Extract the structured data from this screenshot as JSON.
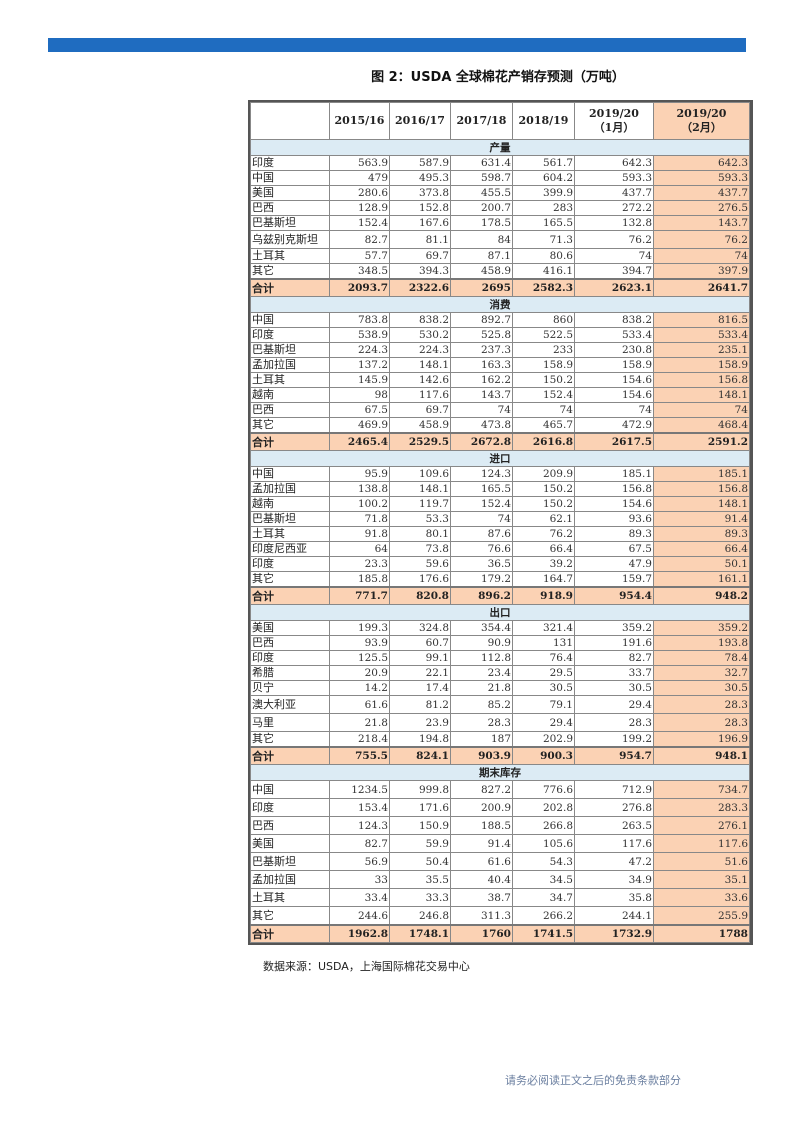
{
  "title": "图 2：USDA 全球棉花产销存预测（万吨）",
  "colors": {
    "header_bar": "#1f6cc0",
    "highlight": "#fbd2b4",
    "section_bg": "#dcebf4"
  },
  "table": {
    "columns": [
      "",
      "2015/16",
      "2016/17",
      "2017/18",
      "2018/19",
      "2019/20\n（1月）",
      "2019/20\n（2月）"
    ],
    "sections": [
      {
        "name": "产量",
        "tall": false,
        "rows": [
          [
            "印度",
            "563.9",
            "587.9",
            "631.4",
            "561.7",
            "642.3",
            "642.3"
          ],
          [
            "中国",
            "479",
            "495.3",
            "598.7",
            "604.2",
            "593.3",
            "593.3"
          ],
          [
            "美国",
            "280.6",
            "373.8",
            "455.5",
            "399.9",
            "437.7",
            "437.7"
          ],
          [
            "巴西",
            "128.9",
            "152.8",
            "200.7",
            "283",
            "272.2",
            "276.5"
          ],
          [
            "巴基斯坦",
            "152.4",
            "167.6",
            "178.5",
            "165.5",
            "132.8",
            "143.7"
          ],
          [
            "乌兹别克斯坦",
            "82.7",
            "81.1",
            "84",
            "71.3",
            "76.2",
            "76.2"
          ],
          [
            "土耳其",
            "57.7",
            "69.7",
            "87.1",
            "80.6",
            "74",
            "74"
          ],
          [
            "其它",
            "348.5",
            "394.3",
            "458.9",
            "416.1",
            "394.7",
            "397.9"
          ]
        ],
        "total": [
          "合计",
          "2093.7",
          "2322.6",
          "2695",
          "2582.3",
          "2623.1",
          "2641.7"
        ]
      },
      {
        "name": "消费",
        "tall": false,
        "rows": [
          [
            "中国",
            "783.8",
            "838.2",
            "892.7",
            "860",
            "838.2",
            "816.5"
          ],
          [
            "印度",
            "538.9",
            "530.2",
            "525.8",
            "522.5",
            "533.4",
            "533.4"
          ],
          [
            "巴基斯坦",
            "224.3",
            "224.3",
            "237.3",
            "233",
            "230.8",
            "235.1"
          ],
          [
            "孟加拉国",
            "137.2",
            "148.1",
            "163.3",
            "158.9",
            "158.9",
            "158.9"
          ],
          [
            "土耳其",
            "145.9",
            "142.6",
            "162.2",
            "150.2",
            "154.6",
            "156.8"
          ],
          [
            "越南",
            "98",
            "117.6",
            "143.7",
            "152.4",
            "154.6",
            "148.1"
          ],
          [
            "巴西",
            "67.5",
            "69.7",
            "74",
            "74",
            "74",
            "74"
          ],
          [
            "其它",
            "469.9",
            "458.9",
            "473.8",
            "465.7",
            "472.9",
            "468.4"
          ]
        ],
        "total": [
          "合计",
          "2465.4",
          "2529.5",
          "2672.8",
          "2616.8",
          "2617.5",
          "2591.2"
        ]
      },
      {
        "name": "进口",
        "tall": false,
        "rows": [
          [
            "中国",
            "95.9",
            "109.6",
            "124.3",
            "209.9",
            "185.1",
            "185.1"
          ],
          [
            "孟加拉国",
            "138.8",
            "148.1",
            "165.5",
            "150.2",
            "156.8",
            "156.8"
          ],
          [
            "越南",
            "100.2",
            "119.7",
            "152.4",
            "150.2",
            "154.6",
            "148.1"
          ],
          [
            "巴基斯坦",
            "71.8",
            "53.3",
            "74",
            "62.1",
            "93.6",
            "91.4"
          ],
          [
            "土耳其",
            "91.8",
            "80.1",
            "87.6",
            "76.2",
            "89.3",
            "89.3"
          ],
          [
            "印度尼西亚",
            "64",
            "73.8",
            "76.6",
            "66.4",
            "67.5",
            "66.4"
          ],
          [
            "印度",
            "23.3",
            "59.6",
            "36.5",
            "39.2",
            "47.9",
            "50.1"
          ],
          [
            "其它",
            "185.8",
            "176.6",
            "179.2",
            "164.7",
            "159.7",
            "161.1"
          ]
        ],
        "total": [
          "合计",
          "771.7",
          "820.8",
          "896.2",
          "918.9",
          "954.4",
          "948.2"
        ]
      },
      {
        "name": "出口",
        "tall": false,
        "rows": [
          [
            "美国",
            "199.3",
            "324.8",
            "354.4",
            "321.4",
            "359.2",
            "359.2"
          ],
          [
            "巴西",
            "93.9",
            "60.7",
            "90.9",
            "131",
            "191.6",
            "193.8"
          ],
          [
            "印度",
            "125.5",
            "99.1",
            "112.8",
            "76.4",
            "82.7",
            "78.4"
          ],
          [
            "希腊",
            "20.9",
            "22.1",
            "23.4",
            "29.5",
            "33.7",
            "32.7"
          ],
          [
            "贝宁",
            "14.2",
            "17.4",
            "21.8",
            "30.5",
            "30.5",
            "30.5"
          ],
          [
            "澳大利亚",
            "61.6",
            "81.2",
            "85.2",
            "79.1",
            "29.4",
            "28.3"
          ],
          [
            "马里",
            "21.8",
            "23.9",
            "28.3",
            "29.4",
            "28.3",
            "28.3"
          ],
          [
            "其它",
            "218.4",
            "194.8",
            "187",
            "202.9",
            "199.2",
            "196.9"
          ]
        ],
        "total": [
          "合计",
          "755.5",
          "824.1",
          "903.9",
          "900.3",
          "954.7",
          "948.1"
        ]
      },
      {
        "name": "期末库存",
        "tall": true,
        "rows": [
          [
            "中国",
            "1234.5",
            "999.8",
            "827.2",
            "776.6",
            "712.9",
            "734.7"
          ],
          [
            "印度",
            "153.4",
            "171.6",
            "200.9",
            "202.8",
            "276.8",
            "283.3"
          ],
          [
            "巴西",
            "124.3",
            "150.9",
            "188.5",
            "266.8",
            "263.5",
            "276.1"
          ],
          [
            "美国",
            "82.7",
            "59.9",
            "91.4",
            "105.6",
            "117.6",
            "117.6"
          ],
          [
            "巴基斯坦",
            "56.9",
            "50.4",
            "61.6",
            "54.3",
            "47.2",
            "51.6"
          ],
          [
            "孟加拉国",
            "33",
            "35.5",
            "40.4",
            "34.5",
            "34.9",
            "35.1"
          ],
          [
            "土耳其",
            "33.4",
            "33.3",
            "38.7",
            "34.7",
            "35.8",
            "33.6"
          ],
          [
            "其它",
            "244.6",
            "246.8",
            "311.3",
            "266.2",
            "244.1",
            "255.9"
          ]
        ],
        "total": [
          "合计",
          "1962.8",
          "1748.1",
          "1760",
          "1741.5",
          "1732.9",
          "1788"
        ]
      }
    ]
  },
  "source": "数据来源：USDA，上海国际棉花交易中心",
  "footer": "请务必阅读正文之后的免责条款部分"
}
